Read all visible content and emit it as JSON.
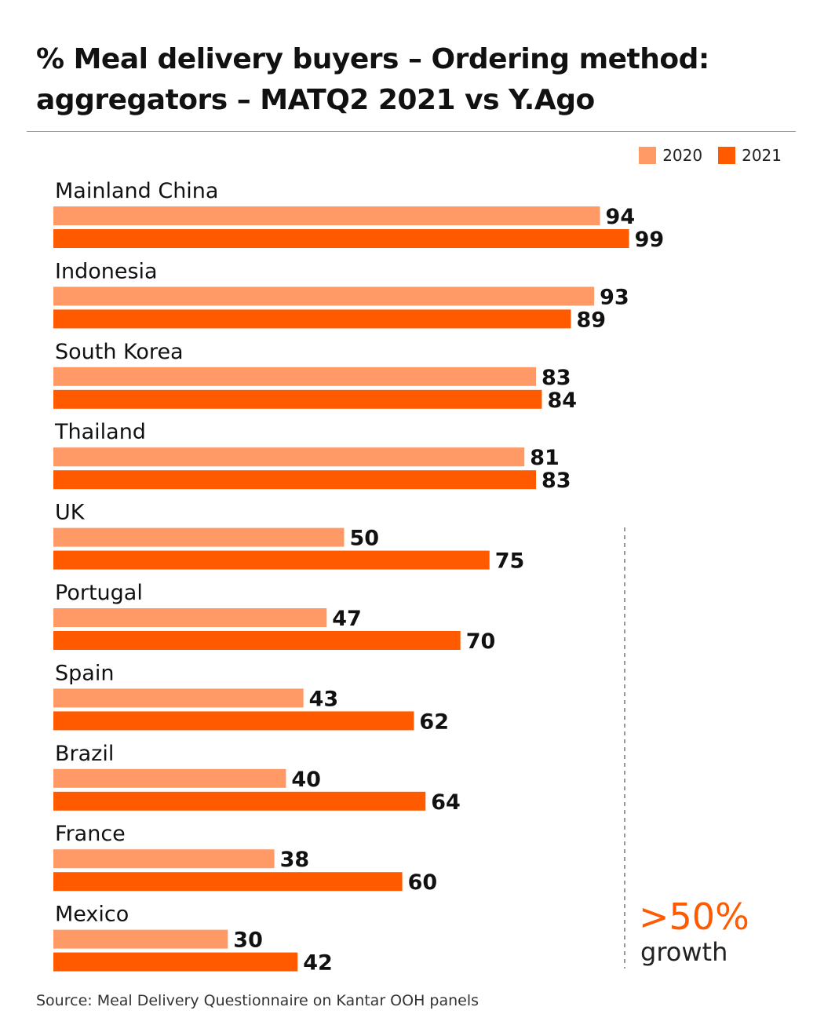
{
  "title": "% Meal delivery buyers – Ordering method: aggregators – MATQ2 2021 vs Y.Ago",
  "source": "Source: Meal Delivery Questionnaire on Kantar OOH panels",
  "callout": {
    "value": ">50%",
    "text": "growth"
  },
  "colors": {
    "series_2020": "#FF9966",
    "series_2021": "#FF5A00",
    "callout": "#FF5A00",
    "divider": "#777777"
  },
  "chart_data": {
    "type": "bar",
    "orientation": "horizontal",
    "title": "% Meal delivery buyers – Ordering method: aggregators – MATQ2 2021 vs Y.Ago",
    "categories": [
      "Mainland China",
      "Indonesia",
      "South Korea",
      "Thailand",
      "UK",
      "Portugal",
      "Spain",
      "Brazil",
      "France",
      "Mexico"
    ],
    "series": [
      {
        "name": "2020",
        "color": "#FF9966",
        "values": [
          94,
          93,
          83,
          81,
          50,
          47,
          43,
          40,
          38,
          30
        ]
      },
      {
        "name": "2021",
        "color": "#FF5A00",
        "values": [
          99,
          89,
          84,
          83,
          75,
          70,
          62,
          64,
          60,
          42
        ]
      }
    ],
    "xlim": [
      0,
      100
    ],
    "legend": "top-right",
    "grid": false,
    "annotation": {
      "text": ">50% growth",
      "applies_to": [
        "UK",
        "Portugal",
        "Spain",
        "Brazil",
        "France",
        "Mexico"
      ]
    }
  }
}
